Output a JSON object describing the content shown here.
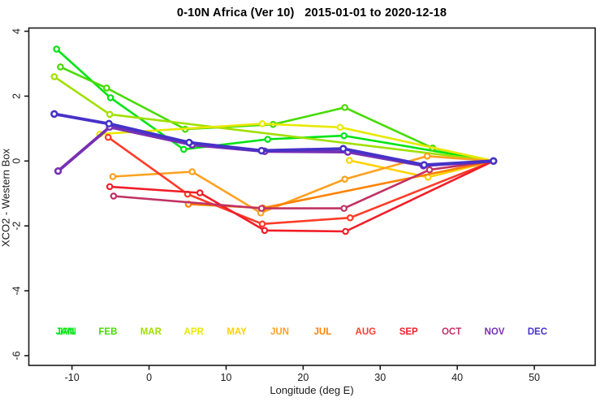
{
  "title": "0-10N Africa (Ver 10)   2015-01-01 to 2020-12-18",
  "chart_data": {
    "type": "line",
    "title": "0-10N Africa (Ver 10)   2015-01-01 to 2020-12-18",
    "xlabel": "Longitude (deg E)",
    "ylabel": "XCO2 - Western Box",
    "xlim": [
      -15.6,
      57.9
    ],
    "ylim": [
      -6.3,
      4.1
    ],
    "xticks": [
      -10,
      0,
      10,
      20,
      30,
      40,
      50
    ],
    "yticks": [
      4,
      2,
      0,
      -2,
      -4,
      -6
    ],
    "grid": false,
    "legend_position": "bottom-inside",
    "marker": "open-circle",
    "series": [
      {
        "name": "JAN",
        "color": "#00E414",
        "thick": false,
        "points": [
          [
            -12.0,
            3.45
          ],
          [
            -5.0,
            1.95
          ],
          [
            4.5,
            0.36
          ],
          [
            15.4,
            0.67
          ],
          [
            25.3,
            0.78
          ],
          [
            44.7,
            0.0
          ]
        ]
      },
      {
        "name": "FEB",
        "color": "#46DC00",
        "thick": false,
        "points": [
          [
            -11.5,
            2.9
          ],
          [
            -5.5,
            2.25
          ],
          [
            4.7,
            0.98
          ],
          [
            16.1,
            1.13
          ],
          [
            25.4,
            1.65
          ],
          [
            36.8,
            0.4
          ],
          [
            44.7,
            0.0
          ]
        ]
      },
      {
        "name": "MAR",
        "color": "#A0E000",
        "thick": false,
        "points": [
          [
            -12.3,
            2.6
          ],
          [
            -5.1,
            1.44
          ],
          [
            44.7,
            0.0
          ]
        ]
      },
      {
        "name": "APR",
        "color": "#E8E800",
        "thick": false,
        "points": [
          [
            -6.4,
            0.83
          ],
          [
            14.7,
            1.15
          ],
          [
            24.8,
            1.04
          ],
          [
            44.7,
            0.0
          ]
        ]
      },
      {
        "name": "MAY",
        "color": "#FFD200",
        "thick": false,
        "points": [
          [
            26.0,
            0.02
          ],
          [
            36.2,
            -0.5
          ],
          [
            44.7,
            0.0
          ]
        ]
      },
      {
        "name": "JUN",
        "color": "#FFA01E",
        "thick": false,
        "points": [
          [
            -4.7,
            -0.48
          ],
          [
            5.6,
            -0.33
          ],
          [
            14.5,
            -1.6
          ],
          [
            25.4,
            -0.56
          ],
          [
            36.1,
            0.15
          ],
          [
            44.7,
            0.0
          ]
        ]
      },
      {
        "name": "JUL",
        "color": "#FF8200",
        "thick": false,
        "points": [
          [
            5.1,
            -1.33
          ],
          [
            14.8,
            -1.45
          ],
          [
            44.7,
            0.0
          ]
        ]
      },
      {
        "name": "AUG",
        "color": "#FF3C28",
        "thick": false,
        "points": [
          [
            -5.3,
            0.73
          ],
          [
            5.0,
            -1.02
          ],
          [
            14.7,
            -1.94
          ],
          [
            26.1,
            -1.75
          ],
          [
            44.7,
            0.0
          ]
        ]
      },
      {
        "name": "SEP",
        "color": "#F01E28",
        "thick": false,
        "points": [
          [
            -5.1,
            -0.79
          ],
          [
            6.6,
            -0.98
          ],
          [
            15.0,
            -2.14
          ],
          [
            25.5,
            -2.17
          ],
          [
            44.7,
            0.0
          ]
        ]
      },
      {
        "name": "OCT",
        "color": "#C03264",
        "thick": false,
        "points": [
          [
            -4.6,
            -1.08
          ],
          [
            14.6,
            -1.46
          ],
          [
            25.3,
            -1.46
          ],
          [
            36.4,
            -0.27
          ],
          [
            44.7,
            0.0
          ]
        ]
      },
      {
        "name": "NOV",
        "color": "#7830B4",
        "thick": true,
        "points": [
          [
            -11.8,
            -0.31
          ],
          [
            -5.1,
            1.05
          ],
          [
            5.6,
            0.5
          ],
          [
            15.0,
            0.3
          ],
          [
            25.8,
            0.28
          ],
          [
            35.6,
            -0.14
          ],
          [
            44.7,
            0.0
          ]
        ]
      },
      {
        "name": "DEC",
        "color": "#4632C8",
        "thick": true,
        "points": [
          [
            -12.3,
            1.45
          ],
          [
            -5.2,
            1.15
          ],
          [
            5.2,
            0.57
          ],
          [
            14.6,
            0.32
          ],
          [
            25.2,
            0.38
          ],
          [
            35.7,
            -0.12
          ],
          [
            44.7,
            0.0
          ]
        ]
      }
    ]
  }
}
